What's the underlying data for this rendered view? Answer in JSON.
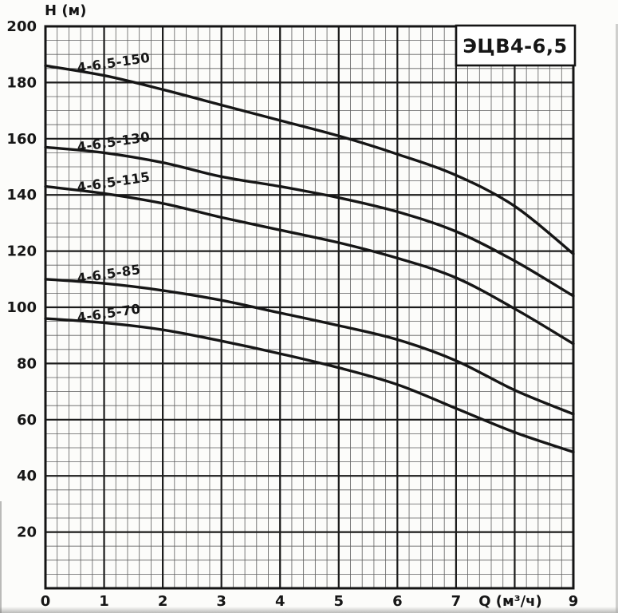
{
  "colors": {
    "curve": "#161616",
    "grid_minor": "#5f5f5f",
    "grid_major": "#1b1b1b",
    "frame": "#141414",
    "text": "#161616",
    "title_box_bg": "#ffffff",
    "background": "#fcfcfa"
  },
  "chart_data": {
    "type": "line",
    "title": "ЭЦВ4-6,5",
    "xlabel": "Q (м³/ч)",
    "ylabel": "H (м)",
    "xlim": [
      0,
      9
    ],
    "ylim": [
      0,
      200
    ],
    "grid": {
      "on": true,
      "minor_x_step": 0.2,
      "minor_y_step": 5,
      "major_x_step": 1,
      "major_y_step": 20
    },
    "x_ticks": [
      {
        "value": 0,
        "label": "0"
      },
      {
        "value": 1,
        "label": "1"
      },
      {
        "value": 2,
        "label": "2"
      },
      {
        "value": 3,
        "label": "3"
      },
      {
        "value": 4,
        "label": "4"
      },
      {
        "value": 5,
        "label": "5"
      },
      {
        "value": 6,
        "label": "6"
      },
      {
        "value": 7,
        "label": "7"
      },
      {
        "value": 9,
        "label": "9"
      }
    ],
    "y_ticks": [
      20,
      40,
      60,
      80,
      100,
      120,
      140,
      160,
      180,
      200
    ],
    "x": [
      0,
      1,
      2,
      3,
      4,
      5,
      6,
      7,
      8,
      9
    ],
    "series": [
      {
        "name": "4-6,5-150",
        "values": [
          186,
          182.5,
          177.5,
          172,
          166.5,
          161,
          154.5,
          147,
          136,
          119
        ]
      },
      {
        "name": "4-6,5-130",
        "values": [
          157,
          155,
          151.5,
          146.5,
          143,
          139,
          134,
          127,
          116.5,
          104
        ]
      },
      {
        "name": "4-6,5-115",
        "values": [
          143,
          140.5,
          137,
          132,
          127.5,
          123,
          117.5,
          110.5,
          99.5,
          87
        ]
      },
      {
        "name": "4-6,5-85",
        "values": [
          110,
          108.5,
          106,
          102.5,
          98,
          93.5,
          88.5,
          81,
          70.5,
          62
        ]
      },
      {
        "name": "4-6,5-70",
        "values": [
          96,
          94.5,
          92,
          88,
          83.5,
          78.5,
          72.5,
          64,
          55.5,
          48.5
        ]
      }
    ],
    "legend_position": "labels-along-curves",
    "curve_label_anchor_q": 0.55,
    "curve_label_angle_deg": -8.5,
    "xlabel_position_q": 7.93
  }
}
